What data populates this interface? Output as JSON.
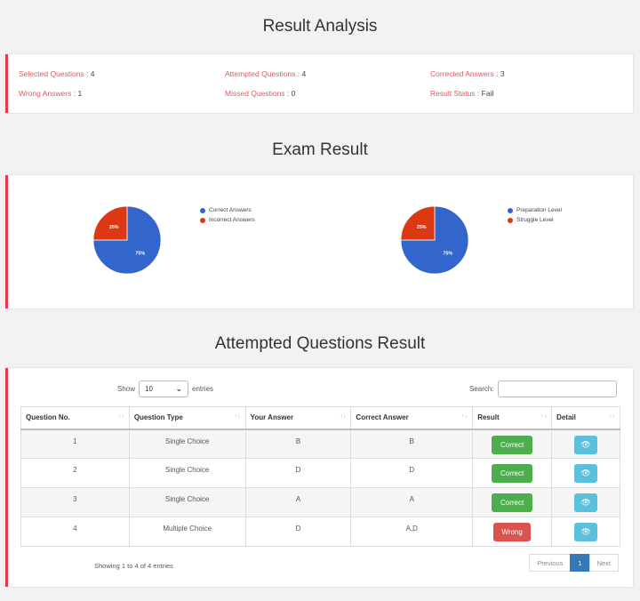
{
  "result_analysis": {
    "title": "Result Analysis",
    "stats": [
      {
        "label": "Selected Questions : ",
        "value": "4"
      },
      {
        "label": "Attempted Questions : ",
        "value": "4"
      },
      {
        "label": "Corrected Answers : ",
        "value": "3"
      },
      {
        "label": "Wrong Answers : ",
        "value": "1"
      },
      {
        "label": "Missed Questions : ",
        "value": "0"
      },
      {
        "label": "Result Status : ",
        "value": "Fail"
      }
    ]
  },
  "exam_result": {
    "title": "Exam Result",
    "charts": [
      {
        "slices": [
          {
            "label": "Correct Answers",
            "value": 75,
            "text": "75%",
            "color": "#3366cc"
          },
          {
            "label": "Incorrect Answers",
            "value": 25,
            "text": "25%",
            "color": "#dc3912"
          }
        ]
      },
      {
        "slices": [
          {
            "label": "Preparation Level",
            "value": 75,
            "text": "75%",
            "color": "#3366cc"
          },
          {
            "label": "Struggle Level",
            "value": 25,
            "text": "25%",
            "color": "#dc3912"
          }
        ]
      }
    ]
  },
  "attempted": {
    "title": "Attempted Questions Result",
    "show_label": "Show",
    "entries_value": "10",
    "entries_label": "entries",
    "search_label": "Search:",
    "columns": [
      "Question No.",
      "Question Type",
      "Your Answer",
      "Correct Answer",
      "Result",
      "Detail"
    ],
    "sort_glyph": "↑↓",
    "rows": [
      {
        "no": "1",
        "type": "Single Choice",
        "your": "B",
        "correct": "B",
        "result": "Correct",
        "status": "correct"
      },
      {
        "no": "2",
        "type": "Single Choice",
        "your": "D",
        "correct": "D",
        "result": "Correct",
        "status": "correct"
      },
      {
        "no": "3",
        "type": "Single Choice",
        "your": "A",
        "correct": "A",
        "result": "Correct",
        "status": "correct"
      },
      {
        "no": "4",
        "type": "Multiple Choice",
        "your": "D",
        "correct": "A,D",
        "result": "Wrong",
        "status": "wrong"
      }
    ],
    "info": "Showing 1 to 4 of 4 entries",
    "pager": {
      "previous": "Previous",
      "current": "1",
      "next": "Next"
    }
  },
  "colors": {
    "accent": "#e53950",
    "correct": "#4cae4c",
    "wrong": "#d9534f",
    "info": "#5bc0de",
    "primary": "#337ab7"
  }
}
